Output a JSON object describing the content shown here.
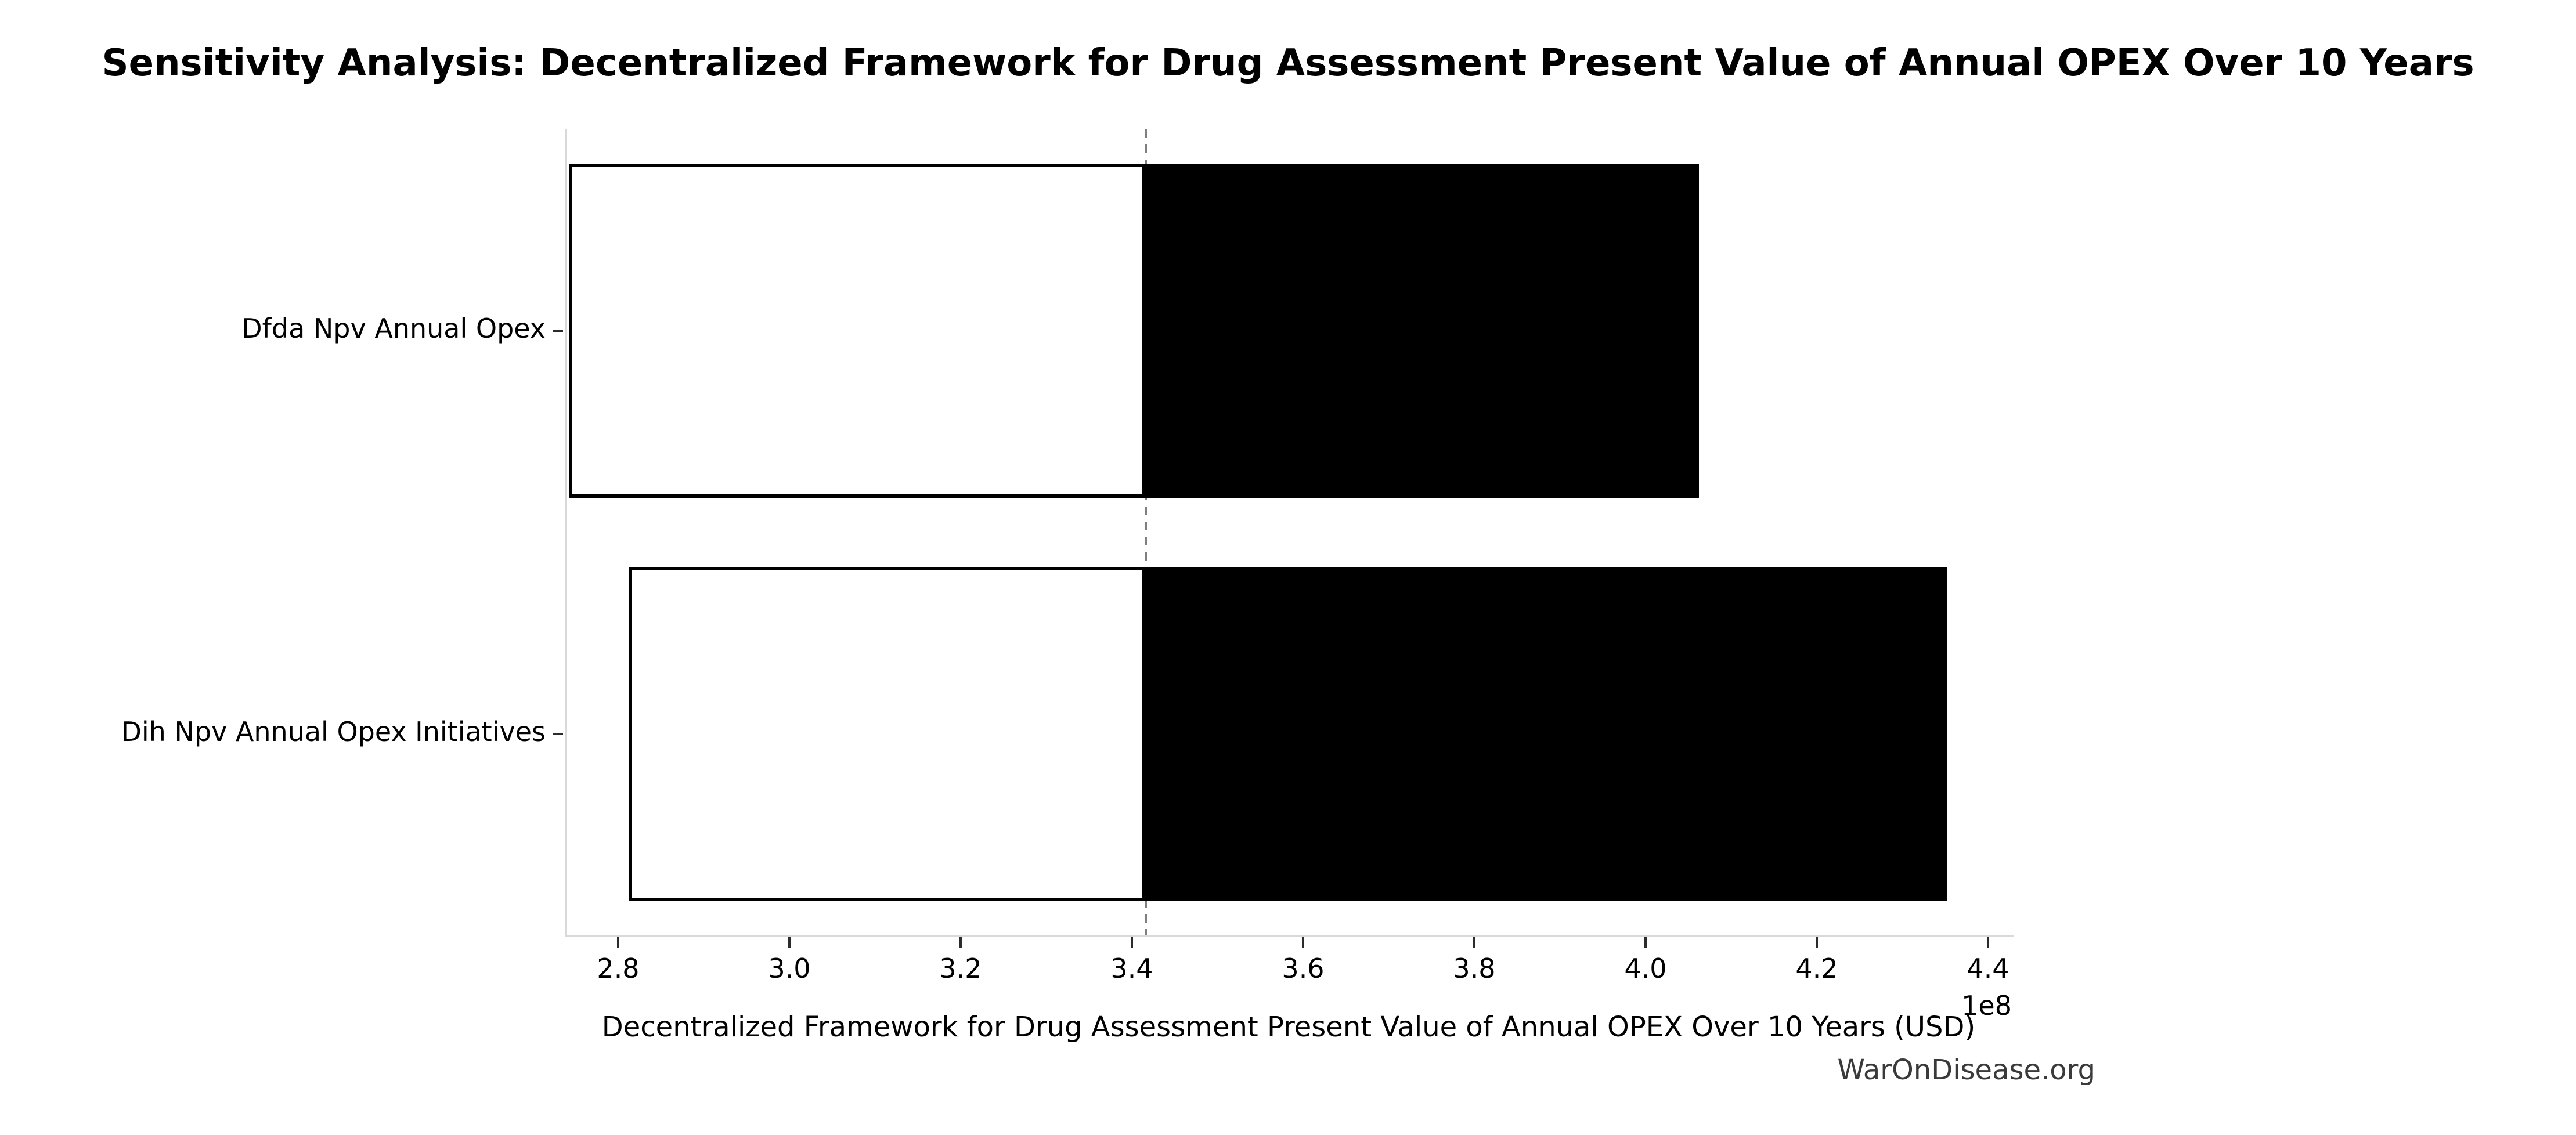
{
  "watermark": "WarOnDisease.org",
  "chart_data": {
    "type": "bar",
    "subtype": "tornado",
    "orientation": "horizontal",
    "title": "Sensitivity Analysis: Decentralized Framework for Drug Assessment Present Value of Annual OPEX Over 10 Years",
    "xlabel": "Decentralized Framework for Drug Assessment Present Value of Annual OPEX Over 10 Years (USD)",
    "ylabel": "",
    "x_offset_label": "1e8",
    "x_unit_multiplier": 100000000,
    "xlim": [
      2.738,
      4.428
    ],
    "xticks": [
      2.8,
      3.0,
      3.2,
      3.4,
      3.6,
      3.8,
      4.0,
      4.2,
      4.4
    ],
    "baseline": 3.414,
    "categories": [
      "Dfda Npv Annual Opex",
      "Dih Npv Annual Opex Initiatives"
    ],
    "series": [
      {
        "name": "low",
        "values": [
          2.74,
          2.81
        ],
        "fill": "#ffffff"
      },
      {
        "name": "high",
        "values": [
          4.06,
          4.35
        ],
        "fill": "#000000"
      }
    ],
    "bar_height_fraction": 0.415,
    "bar_edge_color": "#000000",
    "baseline_color": "#7f7f7f",
    "spine_color": "#d9d9d9",
    "tick_color": "#2b2b2b",
    "grid": false,
    "legend": "none"
  }
}
